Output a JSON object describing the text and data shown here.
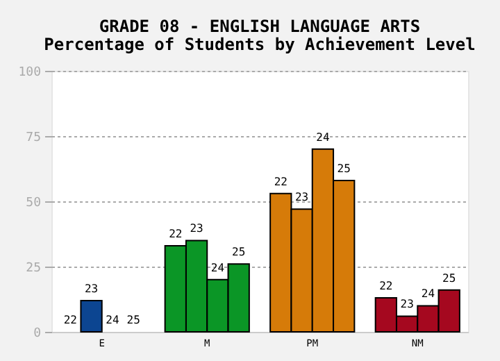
{
  "chart_data": {
    "type": "bar",
    "title": "GRADE 08 - ENGLISH LANGUAGE ARTS",
    "subtitle": "Percentage of Students by Achievement Level",
    "categories": [
      "E",
      "M",
      "PM",
      "NM"
    ],
    "series": [
      {
        "name": "22",
        "colors": [
          "#0c4591",
          "#0b9626",
          "#d67b09",
          "#a5081f"
        ],
        "values": [
          0,
          33,
          53,
          13
        ]
      },
      {
        "name": "23",
        "colors": [
          "#0c4591",
          "#0b9626",
          "#d67b09",
          "#a5081f"
        ],
        "values": [
          12,
          35,
          47,
          6
        ]
      },
      {
        "name": "24",
        "colors": [
          "#0c4591",
          "#0b9626",
          "#d67b09",
          "#a5081f"
        ],
        "values": [
          0,
          20,
          70,
          10
        ]
      },
      {
        "name": "25",
        "colors": [
          "#0c4591",
          "#0b9626",
          "#d67b09",
          "#a5081f"
        ],
        "values": [
          0,
          26,
          58,
          16
        ]
      }
    ],
    "ylim": [
      0,
      100
    ],
    "yticks": [
      0,
      25,
      50,
      75,
      100
    ],
    "grid": "y"
  }
}
